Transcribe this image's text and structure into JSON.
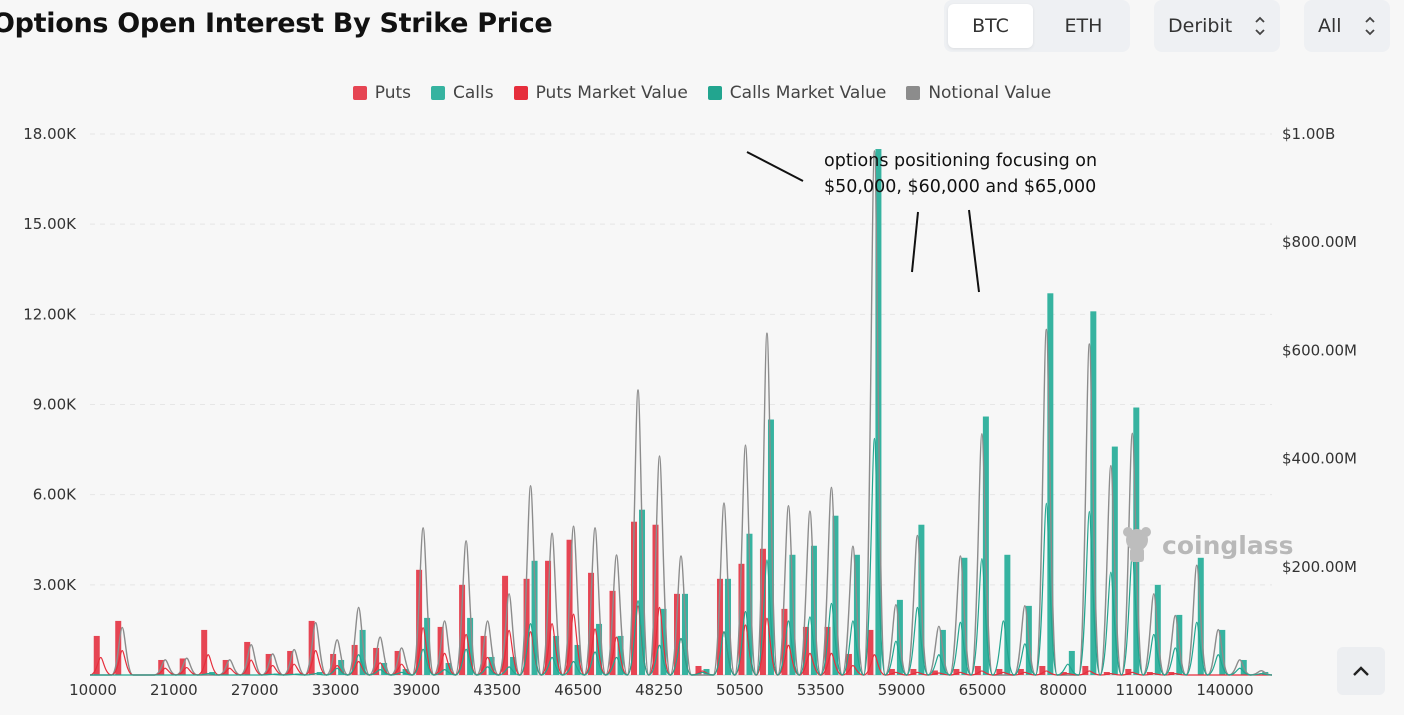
{
  "header": {
    "title": "Options Open Interest By Strike Price",
    "coin_tabs": [
      {
        "label": "BTC",
        "active": true
      },
      {
        "label": "ETH",
        "active": false
      }
    ],
    "exchange_select": {
      "value": "Deribit"
    },
    "expiry_select": {
      "value": "All"
    }
  },
  "legend": [
    {
      "label": "Puts",
      "color": "#e64553"
    },
    {
      "label": "Calls",
      "color": "#36b3a0"
    },
    {
      "label": "Puts Market Value",
      "color": "#e62e3c"
    },
    {
      "label": "Calls Market Value",
      "color": "#22a58f"
    },
    {
      "label": "Notional Value",
      "color": "#8c8c8c"
    }
  ],
  "watermark": "coinglass",
  "back_to_top_icon": "chevron-up-icon",
  "chart_data": {
    "type": "bar",
    "y_left": {
      "ticks": [
        "3.00K",
        "6.00K",
        "9.00K",
        "12.00K",
        "15.00K",
        "18.00K"
      ],
      "ylim": [
        0,
        18000
      ]
    },
    "y_right": {
      "ticks": [
        "$200.00M",
        "$400.00M",
        "$600.00M",
        "$800.00M",
        "$1.00B"
      ],
      "ylim": [
        0,
        1000000000
      ]
    },
    "x_tick_labels": [
      "10000",
      "21000",
      "27000",
      "33000",
      "39000",
      "43500",
      "46500",
      "48250",
      "50500",
      "53500",
      "59000",
      "65000",
      "80000",
      "110000",
      "140000"
    ],
    "grid": true,
    "legend_position": "top-center",
    "annotation": {
      "lines": [
        "options positioning focusing on",
        "$50,000, $60,000 and $65,000"
      ]
    },
    "strikes": [
      {
        "puts": 1300,
        "calls": 0,
        "notional": 0
      },
      {
        "puts": 1800,
        "calls": 0,
        "notional": 88000000
      },
      {
        "puts": 0,
        "calls": 0,
        "notional": 0
      },
      {
        "puts": 500,
        "calls": 0,
        "notional": 28000000
      },
      {
        "puts": 550,
        "calls": 0,
        "notional": 31000000
      },
      {
        "puts": 1500,
        "calls": 100,
        "notional": 0
      },
      {
        "puts": 500,
        "calls": 0,
        "notional": 28000000
      },
      {
        "puts": 1100,
        "calls": 0,
        "notional": 56000000
      },
      {
        "puts": 700,
        "calls": 50,
        "notional": 39000000
      },
      {
        "puts": 800,
        "calls": 50,
        "notional": 47000000
      },
      {
        "puts": 1800,
        "calls": 100,
        "notional": 97000000
      },
      {
        "puts": 700,
        "calls": 500,
        "notional": 65000000
      },
      {
        "puts": 1000,
        "calls": 1500,
        "notional": 125000000
      },
      {
        "puts": 900,
        "calls": 400,
        "notional": 70000000
      },
      {
        "puts": 800,
        "calls": 200,
        "notional": 50000000
      },
      {
        "puts": 3500,
        "calls": 1900,
        "notional": 272000000
      },
      {
        "puts": 1600,
        "calls": 400,
        "notional": 100000000
      },
      {
        "puts": 3000,
        "calls": 1900,
        "notional": 248000000
      },
      {
        "puts": 1300,
        "calls": 600,
        "notional": 100000000
      },
      {
        "puts": 3300,
        "calls": 600,
        "notional": 150000000
      },
      {
        "puts": 3200,
        "calls": 3800,
        "notional": 350000000
      },
      {
        "puts": 3800,
        "calls": 1300,
        "notional": 262000000
      },
      {
        "puts": 4500,
        "calls": 1000,
        "notional": 275000000
      },
      {
        "puts": 3400,
        "calls": 1700,
        "notional": 272000000
      },
      {
        "puts": 2800,
        "calls": 1300,
        "notional": 222000000
      },
      {
        "puts": 5100,
        "calls": 5500,
        "notional": 527000000
      },
      {
        "puts": 5000,
        "calls": 2200,
        "notional": 405000000
      },
      {
        "puts": 2700,
        "calls": 2700,
        "notional": 220000000
      },
      {
        "puts": 300,
        "calls": 200,
        "notional": 0
      },
      {
        "puts": 3200,
        "calls": 3200,
        "notional": 318000000
      },
      {
        "puts": 3700,
        "calls": 4700,
        "notional": 425000000
      },
      {
        "puts": 4200,
        "calls": 8500,
        "notional": 632000000
      },
      {
        "puts": 2200,
        "calls": 4000,
        "notional": 313000000
      },
      {
        "puts": 1600,
        "calls": 4300,
        "notional": 303000000
      },
      {
        "puts": 1600,
        "calls": 5300,
        "notional": 347000000
      },
      {
        "puts": 700,
        "calls": 4000,
        "notional": 238000000
      },
      {
        "puts": 1500,
        "calls": 17500,
        "notional": 969000000
      },
      {
        "puts": 200,
        "calls": 2500,
        "notional": 130000000
      },
      {
        "puts": 200,
        "calls": 5000,
        "notional": 258000000
      },
      {
        "puts": 150,
        "calls": 1500,
        "notional": 90000000
      },
      {
        "puts": 200,
        "calls": 3900,
        "notional": 220000000
      },
      {
        "puts": 300,
        "calls": 8600,
        "notional": 446000000
      },
      {
        "puts": 200,
        "calls": 4000,
        "notional": 0
      },
      {
        "puts": 200,
        "calls": 2300,
        "notional": 128000000
      },
      {
        "puts": 300,
        "calls": 12700,
        "notional": 639000000
      },
      {
        "puts": 100,
        "calls": 800,
        "notional": 0
      },
      {
        "puts": 300,
        "calls": 12100,
        "notional": 612000000
      },
      {
        "puts": 100,
        "calls": 7600,
        "notional": 387000000
      },
      {
        "puts": 200,
        "calls": 8900,
        "notional": 447000000
      },
      {
        "puts": 100,
        "calls": 3000,
        "notional": 150000000
      },
      {
        "puts": 100,
        "calls": 2000,
        "notional": 110000000
      },
      {
        "puts": 0,
        "calls": 3900,
        "notional": 203000000
      },
      {
        "puts": 0,
        "calls": 1500,
        "notional": 84000000
      },
      {
        "puts": 0,
        "calls": 500,
        "notional": 28000000
      },
      {
        "puts": 0,
        "calls": 100,
        "notional": 8000000
      }
    ]
  }
}
